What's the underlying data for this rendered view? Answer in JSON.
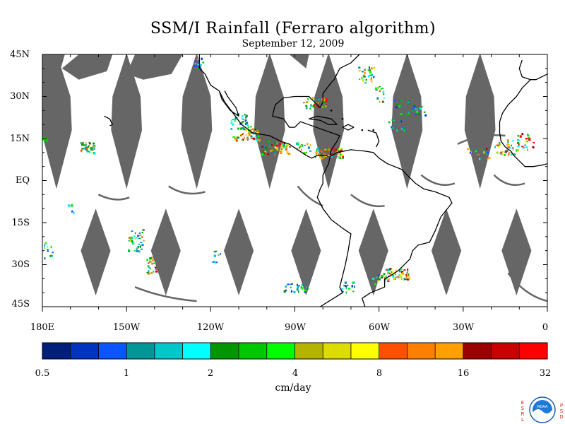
{
  "title": "SSM/I Rainfall (Ferraro algorithm)",
  "subtitle": "September 12, 2009",
  "map": {
    "lon_range": [
      180,
      360
    ],
    "lat_range": [
      -45,
      45
    ],
    "lat_labels": [
      "45N",
      "30N",
      "15N",
      "EQ",
      "15S",
      "30S",
      "45S"
    ],
    "lon_labels": [
      "180E",
      "150W",
      "120W",
      "90W",
      "60W",
      "30W",
      "0"
    ],
    "swath_gap_color": "#666666",
    "coast_color": "#000000"
  },
  "colorbar": {
    "units": "cm/day",
    "tick_labels": [
      "0.5",
      "1",
      "2",
      "4",
      "8",
      "16",
      "32"
    ],
    "colors": [
      "#001f7a",
      "#0033c0",
      "#0a55ff",
      "#009696",
      "#00c8c8",
      "#00ffff",
      "#009600",
      "#00c800",
      "#00ff00",
      "#b4b400",
      "#dcdc00",
      "#ffff00",
      "#ff5000",
      "#ff8000",
      "#ffa000",
      "#9b0000",
      "#c80000",
      "#ff0000"
    ]
  },
  "logo": {
    "left_letters": [
      "E",
      "S",
      "R",
      "L"
    ],
    "right_letters": [
      "P",
      "S",
      "D"
    ],
    "center_text": "NOAA"
  }
}
